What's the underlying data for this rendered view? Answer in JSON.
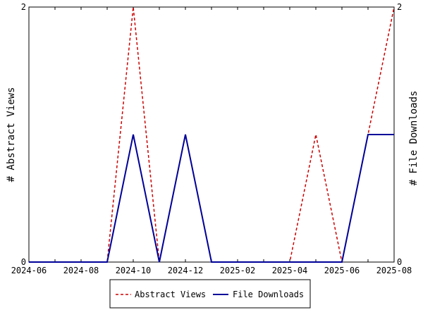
{
  "chart_data": {
    "type": "line",
    "x": [
      "2024-06",
      "2024-07",
      "2024-08",
      "2024-09",
      "2024-10",
      "2024-11",
      "2024-12",
      "2025-01",
      "2025-02",
      "2025-03",
      "2025-04",
      "2025-05",
      "2025-06",
      "2025-07",
      "2025-08"
    ],
    "x_tick_labels": [
      "2024-06",
      "2024-08",
      "2024-10",
      "2024-12",
      "2025-02",
      "2025-04",
      "2025-06",
      "2025-08"
    ],
    "series": [
      {
        "name": "Abstract Views",
        "color": "#cc0000",
        "dash": "dashed",
        "axis": "left",
        "values": [
          0,
          0,
          0,
          0,
          2,
          0,
          1,
          0,
          0,
          0,
          0,
          1,
          0,
          1,
          2
        ]
      },
      {
        "name": "File Downloads",
        "color": "#000099",
        "dash": "solid",
        "axis": "right",
        "values": [
          0,
          0,
          0,
          0,
          1,
          0,
          1,
          0,
          0,
          0,
          0,
          0,
          0,
          1,
          1
        ]
      }
    ],
    "ylabel_left": "# Abstract Views",
    "ylabel_right": "# File Downloads",
    "ylim": [
      0,
      2
    ],
    "y_tick_labels": [
      "0",
      "2"
    ],
    "grid": false,
    "legend_position": "bottom-center"
  }
}
